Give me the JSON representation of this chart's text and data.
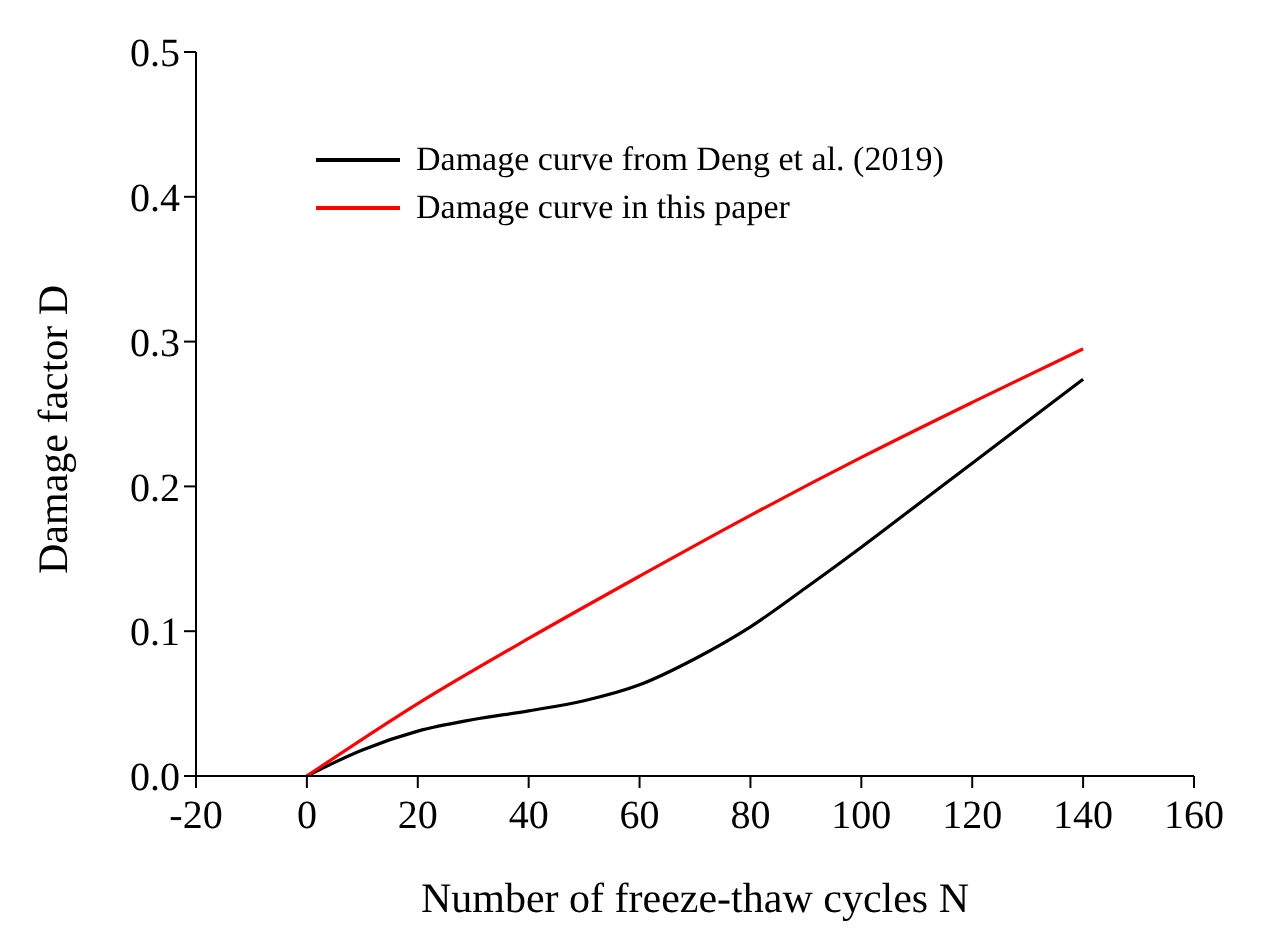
{
  "chart_data": {
    "type": "line",
    "xlabel": "Number of freeze-thaw cycles N",
    "ylabel": "Damage factor D",
    "xlim": [
      -20,
      160
    ],
    "xticks": [
      -20,
      0,
      20,
      40,
      60,
      80,
      100,
      120,
      140,
      160
    ],
    "ylim": [
      0,
      0.5
    ],
    "yticks": [
      {
        "value": 0,
        "label": "0.0"
      },
      0.1,
      0.2,
      0.3,
      0.4,
      0.5
    ],
    "grid": false,
    "legend": "top left",
    "marker": "none",
    "line_style": "solid",
    "series": [
      {
        "name": "Damage curve from Deng et al. (2019)",
        "color": "#000000",
        "x": [
          0,
          10,
          20,
          30,
          40,
          50,
          60,
          70,
          80,
          90,
          100,
          110,
          120,
          130,
          140
        ],
        "values": [
          0,
          0.018,
          0.031,
          0.039,
          0.045,
          0.052,
          0.063,
          0.081,
          0.103,
          0.13,
          0.158,
          0.187,
          0.216,
          0.245,
          0.274
        ]
      },
      {
        "name": "Damage curve in this paper",
        "color": "#ff0000",
        "x": [
          0,
          20,
          40,
          60,
          80,
          100,
          120,
          140
        ],
        "values": [
          0,
          0.05,
          0.095,
          0.138,
          0.18,
          0.22,
          0.258,
          0.295
        ]
      }
    ]
  }
}
